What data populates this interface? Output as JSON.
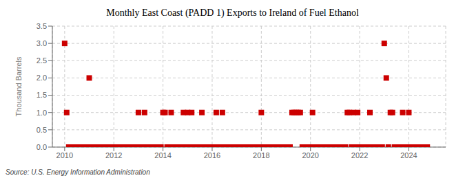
{
  "chart_data": {
    "type": "scatter",
    "title": "Monthly East Coast (PADD 1) Exports to Ireland of Fuel Ethanol",
    "ylabel": "Thousand Barrels",
    "source": "Source: U.S. Energy Information Administration",
    "color": "#cc0000",
    "marker": "square",
    "grid": true,
    "xlim": [
      2009.5,
      2025.5
    ],
    "ylim": [
      0.0,
      3.5
    ],
    "xticks": [
      2010,
      2012,
      2014,
      2016,
      2018,
      2020,
      2022,
      2024
    ],
    "yticks": [
      {
        "value": 0.0,
        "label": "0.0"
      },
      0.5,
      {
        "value": 1.0,
        "label": "1.0"
      },
      1.5,
      {
        "value": 2.0,
        "label": "2.0"
      },
      2.5,
      {
        "value": 3.0,
        "label": "3.0"
      },
      3.5
    ],
    "x": [
      2010.0,
      2010.083,
      2010.167,
      2010.25,
      2010.333,
      2010.417,
      2010.5,
      2010.583,
      2010.667,
      2010.75,
      2010.833,
      2010.917,
      2011.0,
      2011.083,
      2011.167,
      2011.25,
      2011.333,
      2011.417,
      2011.5,
      2011.583,
      2011.667,
      2011.75,
      2011.833,
      2011.917,
      2012.0,
      2012.083,
      2012.167,
      2012.25,
      2012.333,
      2012.417,
      2012.5,
      2012.583,
      2012.667,
      2012.75,
      2012.833,
      2012.917,
      2013.0,
      2013.083,
      2013.167,
      2013.25,
      2013.333,
      2013.417,
      2013.5,
      2013.583,
      2013.667,
      2013.75,
      2013.833,
      2013.917,
      2014.0,
      2014.083,
      2014.167,
      2014.25,
      2014.333,
      2014.417,
      2014.5,
      2014.583,
      2014.667,
      2014.75,
      2014.833,
      2014.917,
      2015.0,
      2015.083,
      2015.167,
      2015.25,
      2015.333,
      2015.417,
      2015.5,
      2015.583,
      2015.667,
      2015.75,
      2015.833,
      2015.917,
      2016.0,
      2016.083,
      2016.167,
      2016.25,
      2016.333,
      2016.417,
      2016.5,
      2016.583,
      2016.667,
      2016.75,
      2016.833,
      2016.917,
      2017.0,
      2017.083,
      2017.167,
      2017.25,
      2017.333,
      2017.417,
      2017.5,
      2017.583,
      2017.667,
      2017.75,
      2017.833,
      2017.917,
      2018.0,
      2018.083,
      2018.167,
      2018.25,
      2018.333,
      2018.417,
      2018.5,
      2018.583,
      2018.667,
      2018.75,
      2018.833,
      2018.917,
      2019.0,
      2019.083,
      2019.167,
      2019.25,
      2019.333,
      2019.417,
      2019.5,
      2019.583,
      2019.667,
      2019.75,
      2019.833,
      2019.917,
      2020.0,
      2020.083,
      2020.167,
      2020.25,
      2020.333,
      2020.417,
      2020.5,
      2020.583,
      2020.667,
      2020.75,
      2020.833,
      2020.917,
      2021.0,
      2021.083,
      2021.167,
      2021.25,
      2021.333,
      2021.417,
      2021.5,
      2021.583,
      2021.667,
      2021.75,
      2021.833,
      2021.917,
      2022.0,
      2022.083,
      2022.167,
      2022.25,
      2022.333,
      2022.417,
      2022.5,
      2022.583,
      2022.667,
      2022.75,
      2022.833,
      2022.917,
      2023.0,
      2023.083,
      2023.167,
      2023.25,
      2023.333,
      2023.417,
      2023.5,
      2023.583,
      2023.667,
      2023.75,
      2023.833,
      2023.917,
      2024.0,
      2024.083,
      2024.167,
      2024.25,
      2024.333,
      2024.417,
      2024.5,
      2024.583,
      2024.667,
      2024.75
    ],
    "values": [
      3.0,
      1.0,
      0.0,
      0.0,
      0.0,
      0.0,
      0.0,
      0.0,
      0.0,
      0.0,
      0.0,
      0.0,
      2.0,
      0.0,
      0.0,
      0.0,
      0.0,
      0.0,
      0.0,
      0.0,
      0.0,
      0.0,
      0.0,
      0.0,
      0.0,
      0.0,
      0.0,
      0.0,
      0.0,
      0.0,
      0.0,
      0.0,
      0.0,
      0.0,
      0.0,
      0.0,
      1.0,
      0.0,
      0.0,
      1.0,
      0.0,
      0.0,
      0.0,
      0.0,
      0.0,
      0.0,
      0.0,
      0.0,
      1.0,
      1.0,
      0.0,
      0.0,
      1.0,
      0.0,
      0.0,
      0.0,
      0.0,
      0.0,
      1.0,
      0.0,
      1.0,
      0.0,
      1.0,
      0.0,
      0.0,
      0.0,
      0.0,
      1.0,
      0.0,
      0.0,
      0.0,
      0.0,
      0.0,
      0.0,
      1.0,
      0.0,
      0.0,
      1.0,
      0.0,
      0.0,
      0.0,
      0.0,
      0.0,
      0.0,
      0.0,
      0.0,
      0.0,
      0.0,
      0.0,
      0.0,
      0.0,
      0.0,
      0.0,
      0.0,
      0.0,
      0.0,
      1.0,
      0.0,
      0.0,
      0.0,
      0.0,
      0.0,
      0.0,
      0.0,
      0.0,
      0.0,
      0.0,
      0.0,
      0.0,
      0.0,
      0.0,
      1.0,
      1.0,
      1.0,
      1.0,
      1.0,
      0.0,
      0.0,
      0.0,
      0.0,
      0.0,
      1.0,
      0.0,
      0.0,
      0.0,
      0.0,
      0.0,
      0.0,
      0.0,
      0.0,
      0.0,
      0.0,
      0.0,
      0.0,
      0.0,
      0.0,
      0.0,
      0.0,
      1.0,
      1.0,
      0.0,
      1.0,
      0.0,
      1.0,
      0.0,
      0.0,
      0.0,
      0.0,
      0.0,
      1.0,
      0.0,
      0.0,
      0.0,
      0.0,
      0.0,
      0.0,
      3.0,
      2.0,
      0.0,
      1.0,
      1.0,
      0.0,
      0.0,
      0.0,
      0.0,
      1.0,
      0.0,
      0.0,
      1.0,
      0.0,
      0.0,
      0.0,
      0.0,
      0.0,
      0.0,
      0.0,
      0.0,
      0.0
    ]
  }
}
